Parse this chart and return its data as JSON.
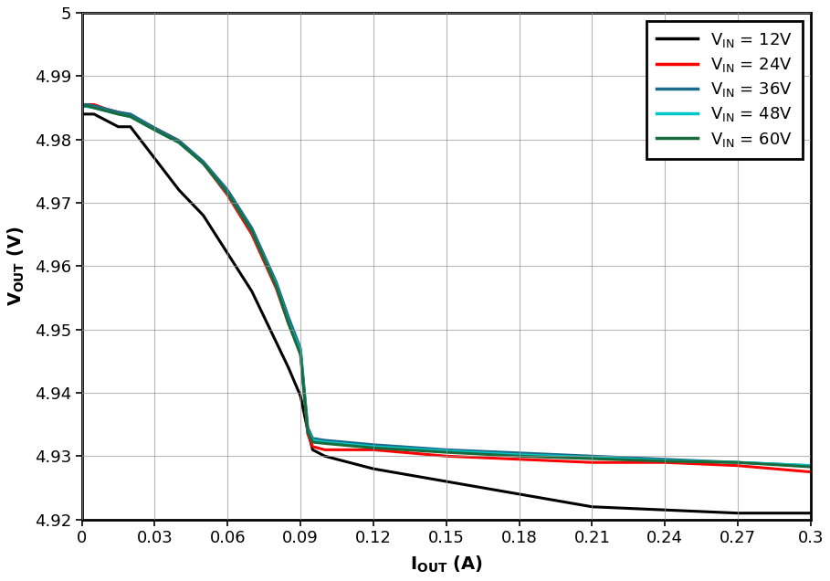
{
  "xlim": [
    0,
    0.3
  ],
  "ylim": [
    4.92,
    5.0
  ],
  "xticks": [
    0,
    0.03,
    0.06,
    0.09,
    0.12,
    0.15,
    0.18,
    0.21,
    0.24,
    0.27,
    0.3
  ],
  "yticks": [
    4.92,
    4.93,
    4.94,
    4.95,
    4.96,
    4.97,
    4.98,
    4.99,
    5.0
  ],
  "series": [
    {
      "label": "V_{IN} = 12V",
      "color": "#000000",
      "linewidth": 2.2,
      "x": [
        0.0,
        0.002,
        0.005,
        0.01,
        0.015,
        0.02,
        0.03,
        0.04,
        0.05,
        0.06,
        0.07,
        0.08,
        0.085,
        0.09,
        0.093,
        0.095,
        0.1,
        0.12,
        0.15,
        0.18,
        0.21,
        0.24,
        0.27,
        0.3
      ],
      "y": [
        4.984,
        4.984,
        4.984,
        4.983,
        4.982,
        4.982,
        4.977,
        4.972,
        4.968,
        4.962,
        4.956,
        4.948,
        4.944,
        4.9395,
        4.934,
        4.931,
        4.93,
        4.928,
        4.926,
        4.924,
        4.922,
        4.9215,
        4.921,
        4.921
      ]
    },
    {
      "label": "V_{IN} = 24V",
      "color": "#ff0000",
      "linewidth": 2.2,
      "x": [
        0.0,
        0.002,
        0.005,
        0.01,
        0.015,
        0.02,
        0.03,
        0.04,
        0.05,
        0.06,
        0.07,
        0.08,
        0.085,
        0.09,
        0.093,
        0.095,
        0.1,
        0.12,
        0.15,
        0.18,
        0.21,
        0.24,
        0.27,
        0.3
      ],
      "y": [
        4.9855,
        4.9855,
        4.9855,
        4.9848,
        4.9843,
        4.9838,
        4.9818,
        4.9798,
        4.9762,
        4.9712,
        4.965,
        4.9565,
        4.951,
        4.9465,
        4.9335,
        4.9315,
        4.931,
        4.931,
        4.93,
        4.9295,
        4.929,
        4.929,
        4.9285,
        4.9275
      ]
    },
    {
      "label": "V_{IN} = 36V",
      "color": "#1a6b8a",
      "linewidth": 2.2,
      "x": [
        0.0,
        0.002,
        0.005,
        0.01,
        0.015,
        0.02,
        0.03,
        0.04,
        0.05,
        0.06,
        0.07,
        0.08,
        0.085,
        0.09,
        0.093,
        0.095,
        0.1,
        0.12,
        0.15,
        0.18,
        0.21,
        0.24,
        0.27,
        0.3
      ],
      "y": [
        4.9855,
        4.9855,
        4.9853,
        4.9848,
        4.9843,
        4.984,
        4.9818,
        4.9798,
        4.9765,
        4.972,
        4.966,
        4.9575,
        4.952,
        4.947,
        4.9345,
        4.9328,
        4.9325,
        4.9318,
        4.931,
        4.9305,
        4.93,
        4.9295,
        4.929,
        4.9285
      ]
    },
    {
      "label": "V_{IN} = 48V",
      "color": "#00c8c8",
      "linewidth": 2.2,
      "x": [
        0.0,
        0.002,
        0.005,
        0.01,
        0.015,
        0.02,
        0.03,
        0.04,
        0.05,
        0.06,
        0.07,
        0.08,
        0.085,
        0.09,
        0.093,
        0.095,
        0.1,
        0.12,
        0.15,
        0.18,
        0.21,
        0.24,
        0.27,
        0.3
      ],
      "y": [
        4.9852,
        4.9852,
        4.985,
        4.9845,
        4.984,
        4.9836,
        4.9815,
        4.9795,
        4.9762,
        4.9715,
        4.9655,
        4.957,
        4.9512,
        4.9465,
        4.934,
        4.9325,
        4.9322,
        4.9315,
        4.9308,
        4.9302,
        4.9298,
        4.9293,
        4.929,
        4.9285
      ]
    },
    {
      "label": "V_{IN} = 60V",
      "color": "#1a6b3c",
      "linewidth": 2.2,
      "x": [
        0.0,
        0.002,
        0.005,
        0.01,
        0.015,
        0.02,
        0.03,
        0.04,
        0.05,
        0.06,
        0.07,
        0.08,
        0.085,
        0.09,
        0.093,
        0.095,
        0.1,
        0.12,
        0.15,
        0.18,
        0.21,
        0.24,
        0.27,
        0.3
      ],
      "y": [
        4.9853,
        4.9853,
        4.985,
        4.9845,
        4.984,
        4.9836,
        4.9815,
        4.9795,
        4.9762,
        4.9715,
        4.9655,
        4.9568,
        4.951,
        4.946,
        4.9338,
        4.9322,
        4.932,
        4.9313,
        4.9306,
        4.93,
        4.9296,
        4.9292,
        4.929,
        4.9283
      ]
    }
  ],
  "background_color": "#ffffff",
  "grid_color": "#999999"
}
